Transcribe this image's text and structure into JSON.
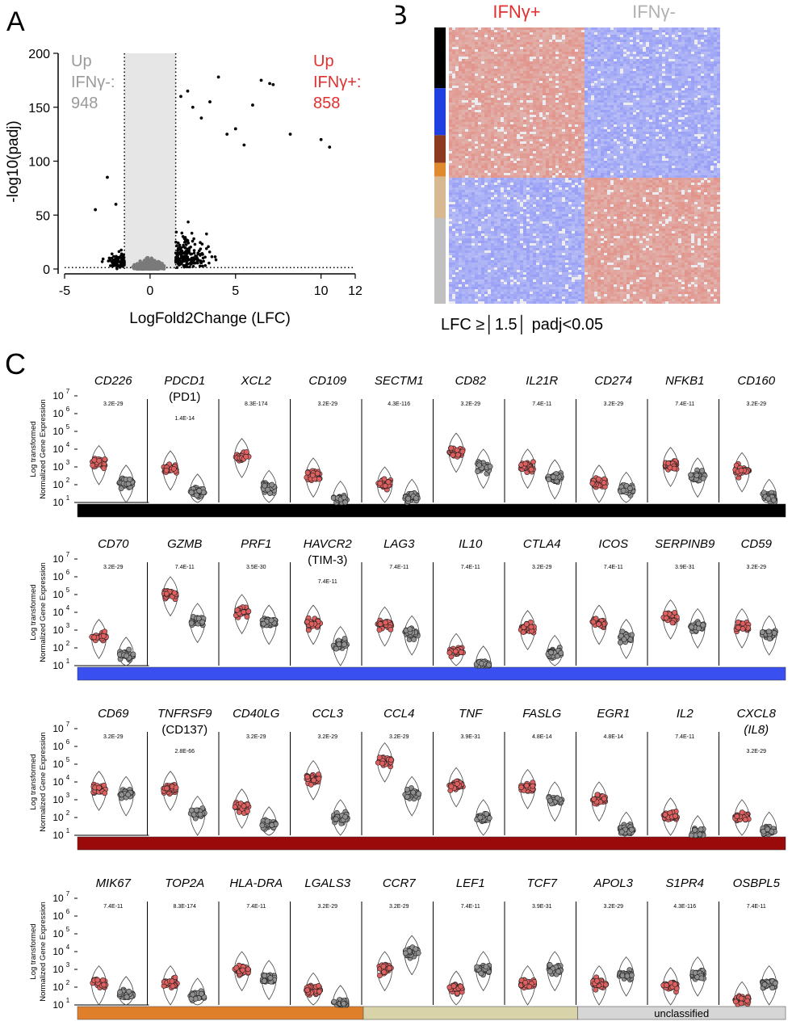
{
  "panel_a": {
    "letter": "A",
    "up_neg": [
      "Up",
      "IFNγ-:",
      "948"
    ],
    "up_pos": [
      "Up",
      "IFNγ+:",
      "858"
    ],
    "colors": {
      "neg": "#9a9a9a",
      "pos": "#e03030",
      "shade": "#e6e6e6"
    }
  },
  "panel_b": {
    "letter": "B",
    "col_pos": "IFNγ+",
    "col_neg": "IFNγ-",
    "footer": "LFC ≥│1.5│  padj<0.05",
    "cluster_colors": [
      "#000000",
      "#1f3fe0",
      "#8b3a1f",
      "#e08a30",
      "#d8b890",
      "#c0c0c0"
    ],
    "cluster_fractions": [
      0.22,
      0.17,
      0.1,
      0.05,
      0.15,
      0.31
    ]
  },
  "panel_c": {
    "letter": "C",
    "y_axis_label": [
      "Log transformed",
      "Normalized Gene Expression"
    ],
    "y_ticks": [
      "7",
      "6",
      "5",
      "4",
      "3",
      "2",
      "1"
    ],
    "tick_base": "10",
    "colors": {
      "pos_fill": "#e06060",
      "neg_fill": "#909090"
    },
    "rows": [
      {
        "bar_color": "#000000",
        "genes": [
          {
            "name": "CD226",
            "sub": "",
            "p": "3.2E-29",
            "pos": 3.2,
            "neg": 2.1
          },
          {
            "name": "PDCD1",
            "sub": "(PD1)",
            "p": "1.4E-14",
            "pos": 2.9,
            "neg": 1.6
          },
          {
            "name": "XCL2",
            "sub": "",
            "p": "8.3E-174",
            "pos": 3.6,
            "neg": 1.8
          },
          {
            "name": "CD109",
            "sub": "",
            "p": "3.2E-29",
            "pos": 2.5,
            "neg": 1.2
          },
          {
            "name": "SECTM1",
            "sub": "",
            "p": "4.3E-116",
            "pos": 2.0,
            "neg": 1.3
          },
          {
            "name": "CD82",
            "sub": "",
            "p": "3.2E-29",
            "pos": 3.9,
            "neg": 3.0
          },
          {
            "name": "IL21R",
            "sub": "",
            "p": "7.4E-11",
            "pos": 3.0,
            "neg": 2.4
          },
          {
            "name": "CD274",
            "sub": "",
            "p": "3.2E-29",
            "pos": 2.1,
            "neg": 1.7
          },
          {
            "name": "NFKB1",
            "sub": "",
            "p": "7.4E-11",
            "pos": 3.1,
            "neg": 2.5
          },
          {
            "name": "CD160",
            "sub": "",
            "p": "3.2E-29",
            "pos": 2.8,
            "neg": 1.3
          }
        ]
      },
      {
        "bar_color": "#3a4ff0",
        "genes": [
          {
            "name": "CD70",
            "sub": "",
            "p": "3.2E-29",
            "pos": 2.6,
            "neg": 1.6
          },
          {
            "name": "GZMB",
            "sub": "",
            "p": "7.4E-11",
            "pos": 5.0,
            "neg": 3.5
          },
          {
            "name": "PRF1",
            "sub": "",
            "p": "3.5E-30",
            "pos": 4.0,
            "neg": 3.4
          },
          {
            "name": "HAVCR2",
            "sub": "(TIM-3)",
            "p": "7.4E-11",
            "pos": 3.4,
            "neg": 2.2
          },
          {
            "name": "LAG3",
            "sub": "",
            "p": "7.4E-11",
            "pos": 3.3,
            "neg": 2.8
          },
          {
            "name": "IL10",
            "sub": "",
            "p": "7.4E-11",
            "pos": 1.8,
            "neg": 1.1
          },
          {
            "name": "CTLA4",
            "sub": "",
            "p": "3.2E-29",
            "pos": 3.1,
            "neg": 1.7
          },
          {
            "name": "ICOS",
            "sub": "",
            "p": "7.4E-11",
            "pos": 3.4,
            "neg": 2.6
          },
          {
            "name": "SERPINB9",
            "sub": "",
            "p": "3.9E-31",
            "pos": 3.7,
            "neg": 3.2
          },
          {
            "name": "CD59",
            "sub": "",
            "p": "3.2E-29",
            "pos": 3.2,
            "neg": 2.8
          }
        ]
      },
      {
        "bar_color": "#9b0a0a",
        "genes": [
          {
            "name": "CD69",
            "sub": "",
            "p": "3.2E-29",
            "pos": 3.6,
            "neg": 3.3
          },
          {
            "name": "TNFRSF9",
            "sub": "(CD137)",
            "p": "2.8E-66",
            "pos": 3.6,
            "neg": 2.2
          },
          {
            "name": "CD40LG",
            "sub": "",
            "p": "3.2E-29",
            "pos": 2.6,
            "neg": 1.6
          },
          {
            "name": "CCL3",
            "sub": "",
            "p": "3.2E-29",
            "pos": 4.2,
            "neg": 2.0
          },
          {
            "name": "CCL4",
            "sub": "",
            "p": "3.2E-29",
            "pos": 5.2,
            "neg": 3.3
          },
          {
            "name": "TNF",
            "sub": "",
            "p": "3.9E-31",
            "pos": 3.8,
            "neg": 2.0
          },
          {
            "name": "FASLG",
            "sub": "",
            "p": "4.8E-14",
            "pos": 3.7,
            "neg": 3.0
          },
          {
            "name": "EGR1",
            "sub": "",
            "p": "4.8E-14",
            "pos": 3.0,
            "neg": 1.3
          },
          {
            "name": "IL2",
            "sub": "",
            "p": "7.4E-11",
            "pos": 2.1,
            "neg": 1.1
          },
          {
            "name": "CXCL8",
            "sub": "(IL8)",
            "p": "3.2E-29",
            "pos": 2.0,
            "neg": 1.3
          }
        ]
      },
      {
        "bar_segments": [
          {
            "color": "#e07f2a",
            "span": 4,
            "label": ""
          },
          {
            "color": "#d8d3a8",
            "span": 3,
            "label": ""
          },
          {
            "color": "#d6d6d6",
            "span": 3,
            "label": "unclassified"
          }
        ],
        "genes": [
          {
            "name": "MIK67",
            "sub": "",
            "p": "7.4E-11",
            "pos": 2.2,
            "neg": 1.6
          },
          {
            "name": "TOP2A",
            "sub": "",
            "p": "8.3E-174",
            "pos": 2.2,
            "neg": 1.5
          },
          {
            "name": "HLA-DRA",
            "sub": "",
            "p": "7.4E-11",
            "pos": 3.0,
            "neg": 2.5
          },
          {
            "name": "LGALS3",
            "sub": "",
            "p": "3.2E-29",
            "pos": 1.8,
            "neg": 1.1
          },
          {
            "name": "CCR7",
            "sub": "",
            "p": "3.2E-29",
            "pos": 3.0,
            "neg": 3.9
          },
          {
            "name": "LEF1",
            "sub": "",
            "p": "7.4E-11",
            "pos": 1.9,
            "neg": 3.0
          },
          {
            "name": "TCF7",
            "sub": "",
            "p": "3.9E-31",
            "pos": 2.2,
            "neg": 3.0
          },
          {
            "name": "APOL3",
            "sub": "",
            "p": "3.2E-29",
            "pos": 2.2,
            "neg": 2.7
          },
          {
            "name": "S1PR4",
            "sub": "",
            "p": "4.3E-116",
            "pos": 2.1,
            "neg": 2.7
          },
          {
            "name": "OSBPL5",
            "sub": "",
            "p": "7.4E-11",
            "pos": 1.3,
            "neg": 2.2
          }
        ]
      }
    ]
  },
  "chart_data": [
    {
      "type": "scatter",
      "xlabel": "LogFold2Change (LFC)",
      "ylabel": "-log10(padj)",
      "x_ticks": [
        "-5",
        "0",
        "5",
        "10",
        "12"
      ],
      "y_ticks": [
        "0",
        "50",
        "100",
        "150",
        "200"
      ],
      "xlim": [
        -5,
        12
      ],
      "ylim": [
        0,
        200
      ],
      "thresholds": {
        "lfc": [
          -1.5,
          1.5
        ],
        "padj_line": 1.3
      },
      "annotations": [
        "Up IFNγ-: 948",
        "Up IFNγ+: 858"
      ],
      "highlight_points": [
        {
          "x": 4,
          "y": 178
        },
        {
          "x": 6.5,
          "y": 175
        },
        {
          "x": 7,
          "y": 172
        },
        {
          "x": 7.2,
          "y": 171
        },
        {
          "x": 3.5,
          "y": 155
        },
        {
          "x": 2.5,
          "y": 150
        },
        {
          "x": 6,
          "y": 152
        },
        {
          "x": 8.2,
          "y": 125
        },
        {
          "x": 10,
          "y": 120
        },
        {
          "x": 10.5,
          "y": 113
        },
        {
          "x": 5,
          "y": 130
        },
        {
          "x": 3,
          "y": 140
        },
        {
          "x": 5.5,
          "y": 115
        },
        {
          "x": 4.5,
          "y": 125
        },
        {
          "x": 2.2,
          "y": 165
        },
        {
          "x": 1.8,
          "y": 160
        },
        {
          "x": -2.5,
          "y": 85
        },
        {
          "x": -3.2,
          "y": 55
        },
        {
          "x": -2,
          "y": 60
        }
      ]
    },
    {
      "type": "heatmap",
      "columns": [
        "IFNγ+",
        "IFNγ-"
      ],
      "note": "LFC ≥│1.5│  padj<0.05"
    }
  ]
}
